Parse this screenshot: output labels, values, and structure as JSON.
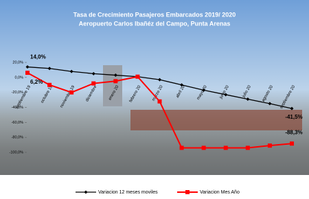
{
  "chart_data": {
    "type": "line",
    "title": "Tasa de Crecimiento Pasajeros Embarcados 2019/ 2020",
    "subtitle": "Aeropuerto Carlos Ibañéz del Campo, Punta Arenas",
    "categories": [
      "septiembre 19",
      "octubre 19",
      "noviembre 19",
      "diciembre",
      "enero 20",
      "febrero 20",
      "marzo 20",
      "abril 20",
      "mayo 20",
      "junio 20",
      "julio 20",
      "agosto 20",
      "septiembre 20"
    ],
    "series": [
      {
        "name": "Variacion 12 meses moviles",
        "color": "#000000",
        "marker": "diamond",
        "values": [
          14.0,
          12,
          8,
          5,
          3,
          1,
          -3,
          -10,
          -17,
          -23,
          -29,
          -35,
          -41.5
        ],
        "value_labels": [
          "14,0%",
          null,
          null,
          null,
          null,
          null,
          null,
          null,
          null,
          null,
          null,
          null,
          "-41,5%"
        ]
      },
      {
        "name": "Variacion Mes Año",
        "color": "#ff0000",
        "marker": "square",
        "values": [
          6.2,
          -10,
          -20,
          -8,
          -5,
          1,
          -32,
          -94,
          -94,
          -94,
          -94,
          -91,
          -88.3
        ],
        "value_labels": [
          "6,2%",
          null,
          null,
          null,
          null,
          null,
          null,
          null,
          null,
          null,
          null,
          null,
          "-88,3%"
        ]
      }
    ],
    "ylim": [
      20,
      -100
    ],
    "yticks": [
      {
        "value": 20,
        "label": "20,0%"
      },
      {
        "value": 0,
        "label": "0,0%"
      },
      {
        "value": -20,
        "label": "-20,0%"
      },
      {
        "value": -40,
        "label": "-40,0%"
      },
      {
        "value": -60,
        "label": "-60,0%"
      },
      {
        "value": -80,
        "label": "-80,0%"
      },
      {
        "value": -100,
        "label": "-100,0%"
      }
    ],
    "legend": "bottom"
  }
}
